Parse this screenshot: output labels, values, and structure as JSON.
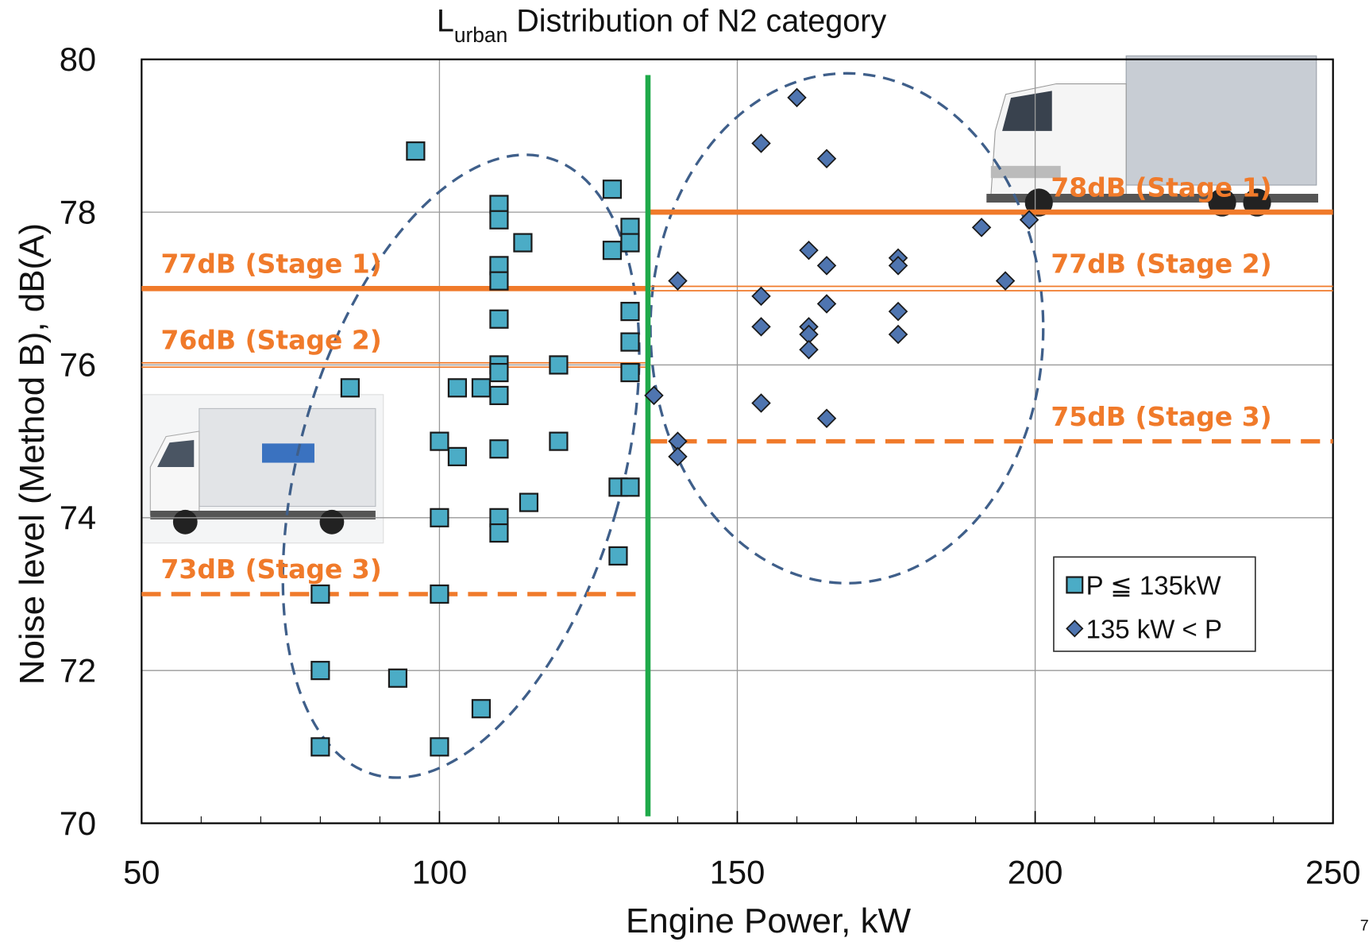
{
  "chart_data": {
    "type": "scatter",
    "title": "L",
    "title_subscript": "urban",
    "title_rest": "Distribution of N2 category",
    "xlabel": "Engine Power, kW",
    "ylabel": "Noise level (Method B), dB(A)",
    "xlim": [
      50,
      250
    ],
    "ylim": [
      70,
      80
    ],
    "xticks": [
      50,
      100,
      150,
      200,
      250
    ],
    "yticks": [
      70,
      72,
      74,
      76,
      78,
      80
    ],
    "grid": true,
    "legend": "lower right",
    "series": [
      {
        "name": "P ≦ 135kW",
        "color": "#4bacc6",
        "marker": "square",
        "x": [
          96,
          85,
          80,
          80,
          80,
          93,
          100,
          100,
          100,
          100,
          103,
          103,
          107,
          107,
          110,
          110,
          110,
          110,
          110,
          110,
          110,
          110,
          110,
          110,
          110,
          114,
          115,
          120,
          120,
          129,
          129,
          130,
          130,
          132,
          132,
          132,
          132,
          132,
          132
        ],
        "values": [
          78.8,
          75.7,
          73.0,
          72.0,
          71.0,
          71.9,
          75.0,
          74.0,
          73.0,
          71.0,
          74.8,
          75.7,
          75.7,
          71.5,
          78.1,
          77.9,
          77.3,
          77.1,
          76.6,
          76.0,
          75.9,
          75.6,
          74.9,
          74.0,
          73.8,
          77.6,
          74.2,
          76.0,
          75.0,
          78.3,
          77.5,
          74.4,
          73.5,
          74.4,
          77.8,
          77.6,
          76.7,
          76.3,
          75.9
        ]
      },
      {
        "name": "135 kW < P",
        "color": "#4f75b0",
        "marker": "diamond",
        "x": [
          140,
          136,
          140,
          140,
          154,
          154,
          154,
          154,
          160,
          162,
          162,
          162,
          162,
          165,
          165,
          165,
          165,
          177,
          177,
          177,
          177,
          191,
          195,
          199
        ],
        "values": [
          77.1,
          75.6,
          75.0,
          74.8,
          78.9,
          76.9,
          76.5,
          75.5,
          79.5,
          77.5,
          76.5,
          76.4,
          76.2,
          78.7,
          77.3,
          76.8,
          75.3,
          77.4,
          77.3,
          76.7,
          76.4,
          77.8,
          77.1,
          77.9
        ]
      }
    ],
    "limits": [
      {
        "label": "77dB (Stage 1)",
        "value": 77,
        "x_range": [
          50,
          135
        ],
        "style": "solid"
      },
      {
        "label": "76dB (Stage 2)",
        "value": 76,
        "x_range": [
          50,
          135
        ],
        "style": "double"
      },
      {
        "label": "73dB (Stage 3)",
        "value": 73,
        "x_range": [
          50,
          135
        ],
        "style": "dashed"
      },
      {
        "label": "78dB (Stage 1)",
        "value": 78,
        "x_range": [
          135,
          250
        ],
        "style": "solid"
      },
      {
        "label": "77dB (Stage 2)",
        "value": 77,
        "x_range": [
          135,
          250
        ],
        "style": "double"
      },
      {
        "label": "75dB (Stage 3)",
        "value": 75,
        "x_range": [
          135,
          250
        ],
        "style": "dashed"
      }
    ],
    "limit_color": "#f07a2a",
    "divider_x": 135,
    "divider_color": "#1faa4a",
    "page_number": "7"
  }
}
